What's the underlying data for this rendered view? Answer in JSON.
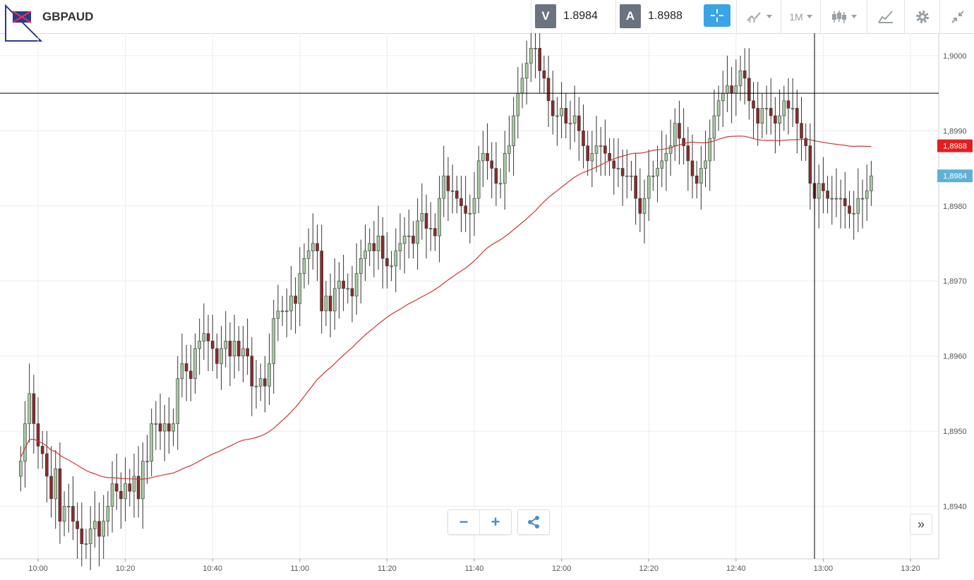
{
  "header": {
    "symbol": "GBPAUD",
    "flag_icon": "gb-au-flag-icon",
    "bid_letter": "V",
    "bid_value": "1.8984",
    "ask_letter": "A",
    "ask_value": "1.8988",
    "timeframe_label": "1M",
    "icons": [
      "crosshair-icon",
      "indicator-icon",
      "timeframe-icon",
      "candlestick-icon",
      "drawing-icon",
      "gear-icon",
      "minimize-icon"
    ]
  },
  "colors": {
    "bull_candle": "#a6c9a0",
    "bear_candle": "#8b2a2a",
    "ma_line": "#d03535",
    "accent": "#3aa4e8",
    "price_tag_red": "#e31e1e",
    "price_tag_blue": "#5fb0d6"
  },
  "chart_data": {
    "type": "candlestick",
    "x_ticks": [
      "10:00",
      "10:20",
      "10:40",
      "11:00",
      "11:20",
      "11:40",
      "12:00",
      "12:20",
      "12:40",
      "13:00",
      "13:20"
    ],
    "y_ticks": [
      "1,8940",
      "1,8950",
      "1,8960",
      "1,8970",
      "1,8980",
      "1,8990",
      "1,9000"
    ],
    "ylim": [
      1.8933,
      1.9003
    ],
    "close": [
      1.8946,
      1.8951,
      1.8955,
      1.8951,
      1.8948,
      1.8947,
      1.8944,
      1.8941,
      1.8945,
      1.8938,
      1.894,
      1.894,
      1.8938,
      1.8937,
      1.8935,
      1.8935,
      1.8937,
      1.8938,
      1.8936,
      1.8938,
      1.894,
      1.8943,
      1.8942,
      1.8941,
      1.8943,
      1.8942,
      1.8944,
      1.8941,
      1.8946,
      1.8946,
      1.8951,
      1.8951,
      1.895,
      1.8951,
      1.895,
      1.8951,
      1.8957,
      1.8959,
      1.8958,
      1.8957,
      1.8961,
      1.8962,
      1.8963,
      1.8962,
      1.8961,
      1.8959,
      1.8961,
      1.8962,
      1.896,
      1.8962,
      1.896,
      1.8961,
      1.896,
      1.8956,
      1.8956,
      1.8957,
      1.8956,
      1.8959,
      1.8965,
      1.8966,
      1.8966,
      1.8966,
      1.8968,
      1.8967,
      1.8971,
      1.8973,
      1.8974,
      1.8975,
      1.8974,
      1.8966,
      1.8968,
      1.8966,
      1.8969,
      1.897,
      1.8969,
      1.8969,
      1.8968,
      1.8971,
      1.8973,
      1.8974,
      1.8975,
      1.8974,
      1.8976,
      1.8973,
      1.8972,
      1.8972,
      1.8974,
      1.8975,
      1.8976,
      1.8976,
      1.8975,
      1.8978,
      1.8979,
      1.8977,
      1.8977,
      1.8976,
      1.8981,
      1.8984,
      1.8982,
      1.8982,
      1.8981,
      1.898,
      1.8979,
      1.8979,
      1.8981,
      1.8986,
      1.8987,
      1.8986,
      1.8985,
      1.8983,
      1.8983,
      1.8987,
      1.8988,
      1.8992,
      1.8995,
      1.8997,
      1.8999,
      1.9001,
      1.9001,
      1.8998,
      1.8997,
      1.8994,
      1.8992,
      1.8992,
      1.8993,
      1.8991,
      1.8991,
      1.8992,
      1.899,
      1.8988,
      1.8986,
      1.8987,
      1.8988,
      1.8988,
      1.8987,
      1.8986,
      1.8985,
      1.8985,
      1.8984,
      1.8984,
      1.8984,
      1.8981,
      1.8979,
      1.8981,
      1.8984,
      1.8984,
      1.8985,
      1.8986,
      1.8987,
      1.8988,
      1.8991,
      1.8989,
      1.8988,
      1.8986,
      1.8984,
      1.8983,
      1.8985,
      1.8986,
      1.8989,
      1.8992,
      1.8994,
      1.8995,
      1.8996,
      1.8995,
      1.8996,
      1.8998,
      1.8997,
      1.8994,
      1.8993,
      1.8991,
      1.8993,
      1.8993,
      1.8992,
      1.8991,
      1.8992,
      1.8994,
      1.8993,
      1.8993,
      1.8991,
      1.8989,
      1.8988,
      1.8983,
      1.8981,
      1.8983,
      1.8982,
      1.8981,
      1.8981,
      1.8981,
      1.8981,
      1.898,
      1.8979,
      1.8979,
      1.8981,
      1.8981,
      1.8982,
      1.8984
    ]
  },
  "crosshair": {
    "price_line": 1.8995,
    "time": "12:58"
  },
  "price_tags": [
    {
      "label": "1,8988",
      "value": 1.8988,
      "color": "#e31e1e"
    },
    {
      "label": "1,8984",
      "value": 1.8984,
      "color": "#5fb0d6"
    }
  ],
  "controls": {
    "zoom_out": "−",
    "zoom_in": "+",
    "share_icon": "share-icon",
    "scroll_icon": "double-chevron-right-icon",
    "scroll_label": "»"
  }
}
